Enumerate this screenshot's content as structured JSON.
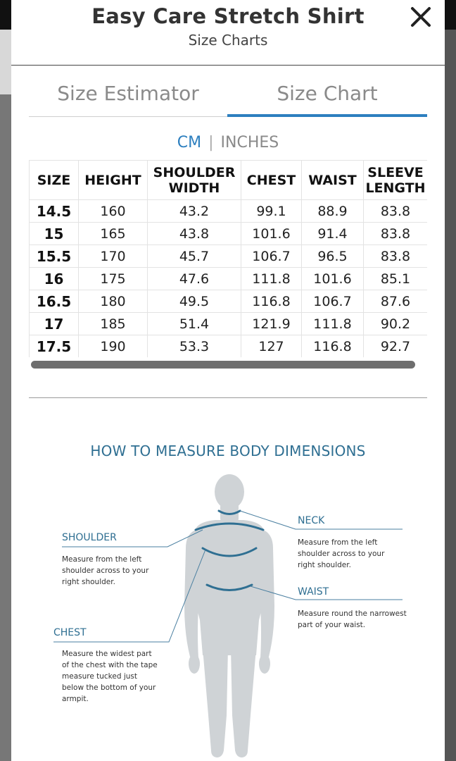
{
  "modal": {
    "title": "Easy Care Stretch Shirt",
    "subtitle": "Size Charts",
    "close_label": "close"
  },
  "tabs": [
    {
      "label": "Size Estimator",
      "active": false
    },
    {
      "label": "Size Chart",
      "active": true
    }
  ],
  "units": {
    "cm": "CM",
    "separator": "|",
    "inches": "INCHES",
    "active": "CM"
  },
  "table": {
    "headers": [
      "SIZE",
      "HEIGHT",
      "SHOULDER WIDTH",
      "CHEST",
      "WAIST",
      "SLEEVE LENGTH"
    ],
    "rows": [
      [
        "14.5",
        "160",
        "43.2",
        "99.1",
        "88.9",
        "83.8"
      ],
      [
        "15",
        "165",
        "43.8",
        "101.6",
        "91.4",
        "83.8"
      ],
      [
        "15.5",
        "170",
        "45.7",
        "106.7",
        "96.5",
        "83.8"
      ],
      [
        "16",
        "175",
        "47.6",
        "111.8",
        "101.6",
        "85.1"
      ],
      [
        "16.5",
        "180",
        "49.5",
        "116.8",
        "106.7",
        "87.6"
      ],
      [
        "17",
        "185",
        "51.4",
        "121.9",
        "111.8",
        "90.2"
      ],
      [
        "17.5",
        "190",
        "53.3",
        "127",
        "116.8",
        "92.7"
      ]
    ]
  },
  "measure": {
    "title": "HOW TO MEASURE BODY DIMENSIONS",
    "shoulder": {
      "label": "SHOULDER",
      "desc": [
        "Measure from the left",
        "shoulder across to your",
        "right shoulder."
      ]
    },
    "chest": {
      "label": "CHEST",
      "desc": [
        "Measure the widest part",
        "of the chest with the tape",
        "measure tucked just",
        "below the bottom of your",
        "armpit."
      ]
    },
    "neck": {
      "label": "NECK",
      "desc": [
        "Measure from the left",
        "shoulder across to your",
        "right shoulder."
      ]
    },
    "waist": {
      "label": "WAIST",
      "desc": [
        "Measure round the narrowest",
        "part of your waist."
      ]
    }
  },
  "colors": {
    "accent": "#2d7fbf",
    "measure_label": "#2f6f92",
    "tape": "#2f6f92",
    "figure": "#cfd3d6"
  }
}
